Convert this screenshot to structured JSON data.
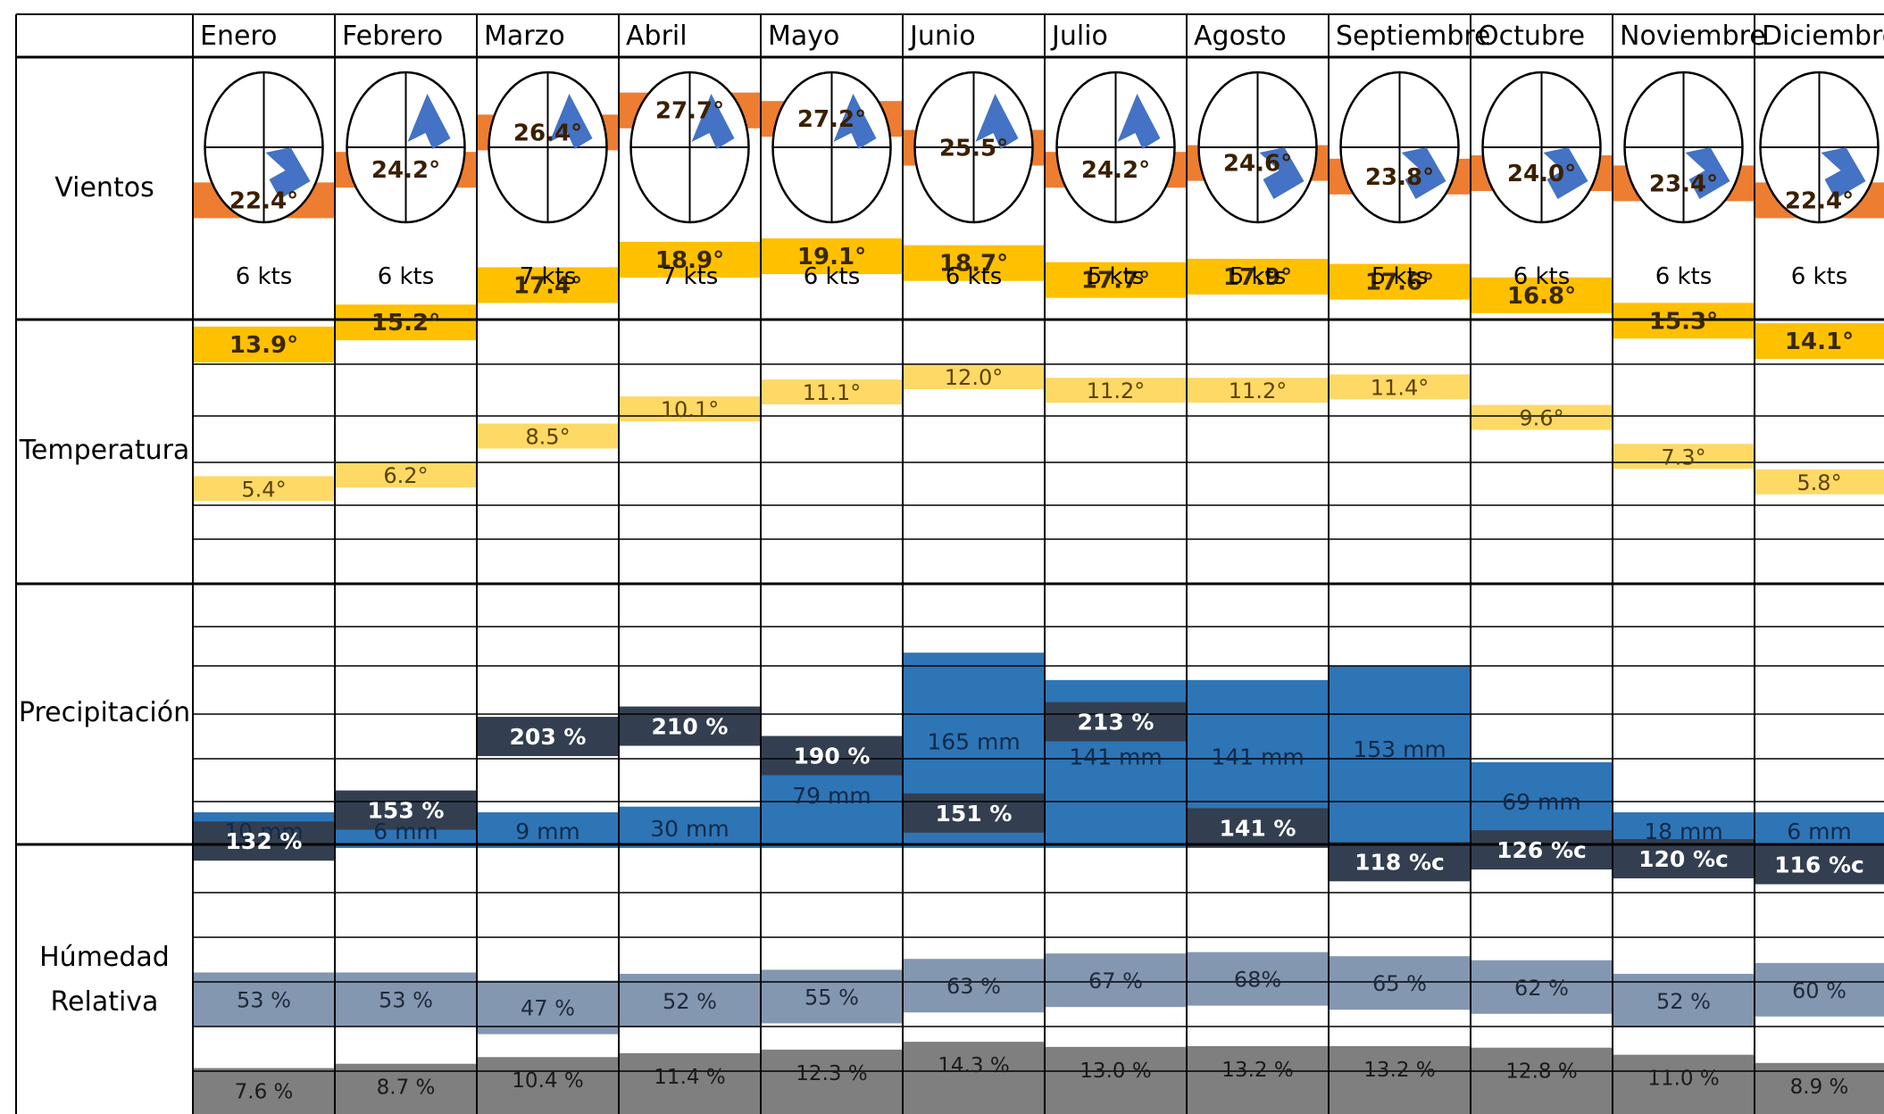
{
  "months": [
    "Enero",
    "Febrero",
    "Marzo",
    "Abril",
    "Mayo",
    "Junio",
    "Julio",
    "Agosto",
    "Septiembre",
    "Octubre",
    "Noviembre",
    "Diciembre"
  ],
  "row_labels": {
    "winds": "Vientos",
    "temperature": "Temperatura",
    "precipitation": "Precipitación",
    "humidity_line1": "Húmedad",
    "humidity_line2": "Relativa"
  },
  "colors": {
    "grid": "#000000",
    "wind_arrow": "#4472C4",
    "temp_max": "#ED7D31",
    "temp_mean": "#FFC000",
    "temp_min": "#FFD966",
    "precip": "#2E75B6",
    "hum_max": "#333F50",
    "hum_mean": "#8497B0",
    "hum_min": "#7F7F7F"
  },
  "chart_data": [
    {
      "type": "table",
      "title": "Vientos",
      "categories": [
        "Enero",
        "Febrero",
        "Marzo",
        "Abril",
        "Mayo",
        "Junio",
        "Julio",
        "Agosto",
        "Septiembre",
        "Octubre",
        "Noviembre",
        "Diciembre"
      ],
      "direction_quadrant": [
        "SE",
        "NE",
        "NE",
        "NE",
        "NE",
        "NE",
        "NE",
        "SE",
        "SE",
        "SE",
        "SE",
        "SE"
      ],
      "series": [
        {
          "labels": [
            "6 kts",
            "6 kts",
            "7 kts",
            "7 kts",
            "6 kts",
            "6 kts",
            "5 kts",
            "5 kts",
            "5 kts",
            "6 kts",
            "6 kts",
            "6 kts"
          ]
        }
      ]
    },
    {
      "type": "area",
      "title": "Temperatura",
      "categories": [
        "Enero",
        "Febrero",
        "Marzo",
        "Abril",
        "Mayo",
        "Junio",
        "Julio",
        "Agosto",
        "Septiembre",
        "Octubre",
        "Noviembre",
        "Diciembre"
      ],
      "ylim": [
        0,
        32
      ],
      "series": [
        {
          "key": "temp_max",
          "values": [
            22.4,
            24.2,
            26.4,
            27.7,
            27.2,
            25.5,
            24.2,
            24.6,
            23.8,
            24.0,
            23.4,
            22.4
          ],
          "labels": [
            "22.4°",
            "24.2°",
            "26.4°",
            "27.7°",
            "27.2°",
            "25.5°",
            "24.2°",
            "24.6°",
            "23.8°",
            "24.0°",
            "23.4°",
            "22.4°"
          ]
        },
        {
          "key": "temp_mean",
          "values": [
            13.9,
            15.2,
            17.4,
            18.9,
            19.1,
            18.7,
            17.7,
            17.9,
            17.6,
            16.8,
            15.3,
            14.1
          ],
          "labels": [
            "13.9°",
            "15.2°",
            "17.4°",
            "18.9°",
            "19.1°",
            "18.7°",
            "17.7°",
            "17.9°",
            "17.6°",
            "16.8°",
            "15.3°",
            "14.1°"
          ]
        },
        {
          "key": "temp_min",
          "values": [
            5.4,
            6.2,
            8.5,
            10.1,
            11.1,
            12.0,
            11.2,
            11.2,
            11.4,
            9.6,
            7.3,
            5.8
          ],
          "labels": [
            "5.4°",
            "6.2°",
            "8.5°",
            "10.1°",
            "11.1°",
            "12.0°",
            "11.2°",
            "11.2°",
            "11.4°",
            "9.6°",
            "7.3°",
            "5.8°"
          ]
        }
      ]
    },
    {
      "type": "bar",
      "title": "Precipitación",
      "categories": [
        "Enero",
        "Febrero",
        "Marzo",
        "Abril",
        "Mayo",
        "Junio",
        "Julio",
        "Agosto",
        "Septiembre",
        "Octubre",
        "Noviembre",
        "Diciembre"
      ],
      "ylim": [
        0,
        180
      ],
      "series": [
        {
          "key": "precip",
          "values": [
            10,
            6,
            9,
            30,
            79,
            165,
            141,
            141,
            153,
            69,
            18,
            6
          ],
          "labels": [
            "10 mm",
            "6 mm",
            "9 mm",
            "30 mm",
            "79 mm",
            "165 mm",
            "141 mm",
            "141 mm",
            "153 mm",
            "69 mm",
            "18 mm",
            "6 mm"
          ]
        }
      ]
    },
    {
      "type": "area",
      "title": "Húmedad Relativa",
      "categories": [
        "Enero",
        "Febrero",
        "Marzo",
        "Abril",
        "Mayo",
        "Junio",
        "Julio",
        "Agosto",
        "Septiembre",
        "Octubre",
        "Noviembre",
        "Diciembre"
      ],
      "series": [
        {
          "key": "hum_max",
          "values": [
            132,
            153,
            203,
            210,
            190,
            151,
            213,
            141,
            118,
            126,
            120,
            116
          ],
          "labels": [
            "132 %",
            "153 %",
            "203 %",
            "210 %",
            "190 %",
            "151 %",
            "213 %",
            "141 %",
            "118 %c",
            "126 %c",
            "120 %c",
            "116 %c"
          ]
        },
        {
          "key": "hum_mean",
          "values": [
            53,
            53,
            47,
            52,
            55,
            63,
            67,
            68,
            65,
            62,
            52,
            60
          ],
          "labels": [
            "53 %",
            "53 %",
            "47 %",
            "52 %",
            "55 %",
            "63 %",
            "67 %",
            "68%",
            "65 %",
            "62 %",
            "52 %",
            "60 %"
          ]
        },
        {
          "key": "hum_min",
          "values": [
            7.6,
            8.7,
            10.4,
            11.4,
            12.3,
            14.3,
            13.0,
            13.2,
            13.2,
            12.8,
            11.0,
            8.9
          ],
          "labels": [
            "7.6 %",
            "8.7 %",
            "10.4 %",
            "11.4 %",
            "12.3 %",
            "14.3 %",
            "13.0 %",
            "13.2 %",
            "13.2 %",
            "12.8 %",
            "11.0 %",
            "8.9 %"
          ]
        }
      ]
    }
  ]
}
